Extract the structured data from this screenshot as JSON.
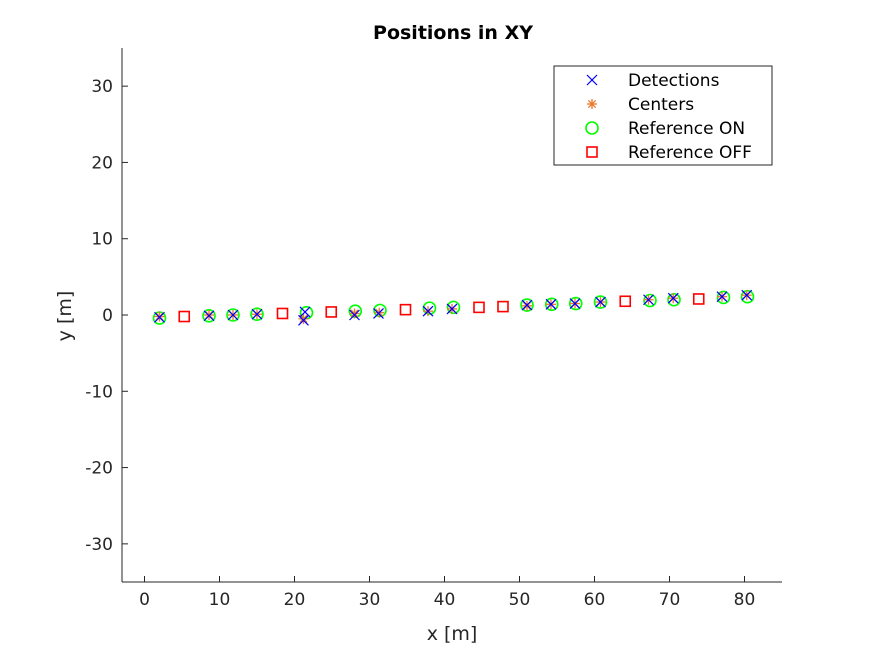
{
  "chart_data": {
    "type": "scatter",
    "title": "Positions in XY",
    "xlabel": "x [m]",
    "ylabel": "y [m]",
    "xlim": [
      -3,
      85
    ],
    "ylim": [
      -35,
      35
    ],
    "xticks": [
      0,
      10,
      20,
      30,
      40,
      50,
      60,
      70,
      80
    ],
    "yticks": [
      -30,
      -20,
      -10,
      0,
      10,
      20,
      30
    ],
    "grid": false,
    "legend_position": "top-right",
    "series": [
      {
        "name": "Detections",
        "marker": "x",
        "color": "#0000ff",
        "points": [
          [
            2.0,
            -0.3
          ],
          [
            8.6,
            -0.1
          ],
          [
            11.8,
            0.0
          ],
          [
            15.0,
            0.1
          ],
          [
            21.2,
            -0.7
          ],
          [
            21.4,
            0.4
          ],
          [
            28.0,
            0.0
          ],
          [
            31.2,
            0.2
          ],
          [
            37.8,
            0.5
          ],
          [
            41.0,
            0.8
          ],
          [
            51.0,
            1.3
          ],
          [
            54.2,
            1.4
          ],
          [
            57.4,
            1.5
          ],
          [
            60.8,
            1.7
          ],
          [
            67.2,
            2.0
          ],
          [
            70.5,
            2.2
          ],
          [
            77.0,
            2.4
          ],
          [
            80.3,
            2.6
          ]
        ]
      },
      {
        "name": "Centers",
        "marker": "asterisk",
        "color": "#e8782a",
        "points": [
          [
            2.0,
            -0.2
          ],
          [
            8.6,
            0.0
          ],
          [
            11.8,
            0.0
          ],
          [
            15.0,
            0.1
          ],
          [
            21.2,
            -0.5
          ],
          [
            28.0,
            0.2
          ],
          [
            31.3,
            0.3
          ],
          [
            37.8,
            0.5
          ],
          [
            41.0,
            0.8
          ],
          [
            51.0,
            1.2
          ],
          [
            54.2,
            1.4
          ],
          [
            57.4,
            1.5
          ],
          [
            60.8,
            1.7
          ],
          [
            67.2,
            2.0
          ],
          [
            70.5,
            2.2
          ],
          [
            77.0,
            2.4
          ],
          [
            80.3,
            2.6
          ]
        ]
      },
      {
        "name": "Reference ON",
        "marker": "circle",
        "color": "#00ff00",
        "points": [
          [
            2.0,
            -0.4
          ],
          [
            8.6,
            -0.1
          ],
          [
            11.8,
            0.0
          ],
          [
            15.0,
            0.1
          ],
          [
            21.6,
            0.3
          ],
          [
            28.1,
            0.5
          ],
          [
            31.4,
            0.6
          ],
          [
            38.0,
            0.9
          ],
          [
            41.2,
            1.0
          ],
          [
            51.0,
            1.3
          ],
          [
            54.3,
            1.4
          ],
          [
            57.5,
            1.5
          ],
          [
            60.8,
            1.7
          ],
          [
            67.4,
            1.9
          ],
          [
            70.6,
            2.0
          ],
          [
            77.2,
            2.3
          ],
          [
            80.4,
            2.4
          ]
        ]
      },
      {
        "name": "Reference OFF",
        "marker": "square",
        "color": "#ff0000",
        "points": [
          [
            5.3,
            -0.2
          ],
          [
            18.4,
            0.2
          ],
          [
            24.9,
            0.4
          ],
          [
            34.8,
            0.7
          ],
          [
            44.6,
            1.0
          ],
          [
            47.8,
            1.1
          ],
          [
            64.1,
            1.8
          ],
          [
            73.9,
            2.1
          ]
        ]
      }
    ]
  }
}
